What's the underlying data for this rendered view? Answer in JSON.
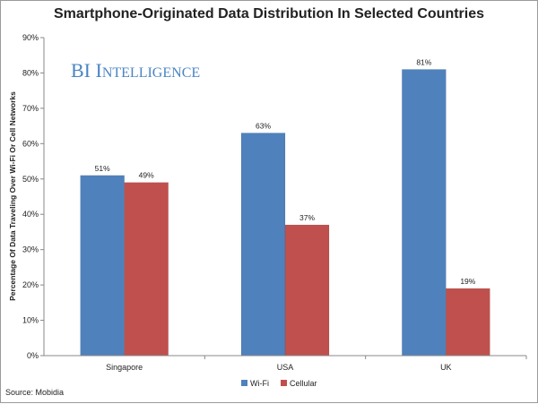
{
  "chart_data": {
    "type": "bar",
    "title": "Smartphone-Originated Data Distribution In Selected Countries",
    "ylabel": "Percentage Of Data Traveling Over Wi-Fi Or Cell Networks",
    "xlabel": "",
    "categories": [
      "Singapore",
      "USA",
      "UK"
    ],
    "series": [
      {
        "name": "Wi-Fi",
        "values": [
          51,
          63,
          81
        ],
        "labels": [
          "51%",
          "63%",
          "81%"
        ],
        "color": "#4f81bd"
      },
      {
        "name": "Cellular",
        "values": [
          49,
          37,
          19
        ],
        "labels": [
          "49%",
          "37%",
          "19%"
        ],
        "color": "#c0504d"
      }
    ],
    "ylim": [
      0,
      90
    ],
    "yticks": [
      "0%",
      "10%",
      "20%",
      "30%",
      "40%",
      "50%",
      "60%",
      "70%",
      "80%",
      "90%"
    ],
    "grid": false,
    "legend": "bottom-center"
  },
  "watermark": {
    "big1": "BI ",
    "small1": "I",
    "small2": "NTELLIGENCE"
  },
  "source": "Source: Mobidia"
}
